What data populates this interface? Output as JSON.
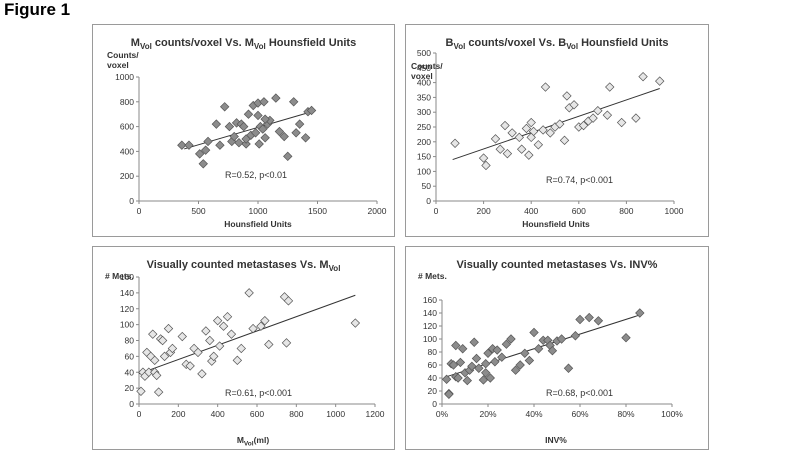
{
  "figure_title": "Figure 1",
  "chart_data": [
    {
      "type": "scatter",
      "id": "c1",
      "title": "M",
      "title_sub1": "Vol",
      "title_mid": " counts/voxel Vs. M",
      "title_sub2": "Vol",
      "title_end": "  Hounsfield Units",
      "ylabel_lines": [
        "Counts/",
        "voxel"
      ],
      "xlabel": "Hounsfield Units",
      "xlim": [
        0,
        2000
      ],
      "xticks": [
        0,
        500,
        1000,
        1500,
        2000
      ],
      "ylim": [
        0,
        1000
      ],
      "yticks": [
        0,
        200,
        400,
        600,
        800,
        1000
      ],
      "xtick_labels": [
        "0",
        "500",
        "1000",
        "1500",
        "2000"
      ],
      "ytick_labels": [
        "0",
        "200",
        "400",
        "600",
        "800",
        "1000"
      ],
      "annotation": "R=0.52, p<0.01",
      "marker_color": "#8c8c8c",
      "trend": {
        "x": [
          380,
          1450
        ],
        "y": [
          420,
          720
        ]
      },
      "points": {
        "x": [
          360,
          420,
          510,
          540,
          560,
          580,
          650,
          680,
          720,
          760,
          780,
          800,
          820,
          840,
          860,
          880,
          900,
          920,
          940,
          960,
          980,
          1000,
          1010,
          1020,
          1040,
          1050,
          1060,
          1080,
          1100,
          1150,
          1180,
          1220,
          1250,
          1300,
          1320,
          1350,
          1400,
          1420,
          1450,
          1000,
          1060,
          900
        ],
        "y": [
          450,
          450,
          380,
          300,
          410,
          480,
          620,
          450,
          760,
          600,
          480,
          520,
          630,
          470,
          620,
          600,
          460,
          700,
          530,
          770,
          550,
          790,
          460,
          600,
          580,
          800,
          510,
          620,
          650,
          830,
          560,
          520,
          360,
          800,
          550,
          620,
          510,
          720,
          730,
          690,
          660,
          500
        ]
      }
    },
    {
      "type": "scatter",
      "id": "c2",
      "title": "B",
      "title_sub1": "Vol",
      "title_mid": " counts/voxel Vs. B",
      "title_sub2": "Vol",
      "title_end": "  Hounsfield Units",
      "ylabel_lines": [
        "Counts/",
        "voxel"
      ],
      "xlabel": "Hounsfield Units",
      "xlim": [
        0,
        1000
      ],
      "xticks": [
        0,
        200,
        400,
        600,
        800,
        1000
      ],
      "ylim": [
        0,
        500
      ],
      "yticks": [
        0,
        50,
        100,
        150,
        200,
        250,
        300,
        350,
        400,
        450,
        500
      ],
      "xtick_labels": [
        "0",
        "200",
        "400",
        "600",
        "800",
        "1000"
      ],
      "ytick_labels": [
        "0",
        "50",
        "100",
        "150",
        "200",
        "250",
        "300",
        "350",
        "400",
        "450",
        "500"
      ],
      "annotation": "R=0.74, p<0.001",
      "marker_color": "#e6e6e6",
      "trend": {
        "x": [
          70,
          940
        ],
        "y": [
          140,
          380
        ]
      },
      "points": {
        "x": [
          80,
          200,
          210,
          250,
          270,
          290,
          300,
          320,
          350,
          360,
          380,
          390,
          400,
          410,
          430,
          450,
          460,
          480,
          500,
          520,
          540,
          550,
          560,
          580,
          600,
          620,
          640,
          660,
          680,
          720,
          730,
          780,
          840,
          870,
          940,
          400
        ],
        "y": [
          195,
          145,
          120,
          210,
          175,
          255,
          160,
          230,
          215,
          175,
          245,
          155,
          265,
          235,
          190,
          240,
          385,
          230,
          250,
          260,
          205,
          355,
          315,
          325,
          250,
          255,
          270,
          280,
          305,
          290,
          385,
          265,
          280,
          420,
          405,
          215
        ]
      }
    },
    {
      "type": "scatter",
      "id": "c3",
      "title": "Visually counted metastases Vs. M",
      "title_sub1": "Vol",
      "title_mid": "",
      "title_sub2": "",
      "title_end": "",
      "ylabel_lines": [
        "# Mets."
      ],
      "xlabel": "M",
      "xlabel_sub": "Vol",
      "xlabel_end": "(ml)",
      "xlim": [
        0,
        1200
      ],
      "xticks": [
        0,
        200,
        400,
        600,
        800,
        1000,
        1200
      ],
      "ylim": [
        0,
        160
      ],
      "yticks": [
        0,
        20,
        40,
        60,
        80,
        100,
        120,
        140,
        160
      ],
      "xtick_labels": [
        "0",
        "200",
        "400",
        "600",
        "800",
        "1000",
        "1200"
      ],
      "ytick_labels": [
        "0",
        "20",
        "40",
        "60",
        "80",
        "100",
        "120",
        "140",
        "160"
      ],
      "annotation": "R=0.61, p<0.001",
      "marker_color": "#e6e6e6",
      "trend": {
        "x": [
          0,
          1100
        ],
        "y": [
          38,
          137
        ]
      },
      "points": {
        "x": [
          10,
          20,
          30,
          40,
          50,
          60,
          70,
          80,
          90,
          100,
          110,
          120,
          130,
          150,
          160,
          170,
          220,
          240,
          260,
          280,
          300,
          320,
          340,
          360,
          370,
          380,
          400,
          410,
          430,
          450,
          470,
          500,
          520,
          560,
          580,
          620,
          640,
          660,
          740,
          750,
          760,
          1100,
          80
        ],
        "y": [
          16,
          40,
          35,
          65,
          40,
          60,
          88,
          40,
          36,
          15,
          82,
          80,
          60,
          95,
          65,
          70,
          85,
          50,
          48,
          70,
          65,
          38,
          92,
          80,
          54,
          60,
          105,
          73,
          98,
          110,
          88,
          55,
          70,
          140,
          95,
          98,
          105,
          75,
          135,
          77,
          130,
          102,
          55
        ]
      }
    },
    {
      "type": "scatter",
      "id": "c4",
      "title": "Visually counted metastases Vs. INV%",
      "title_sub1": "",
      "title_mid": "",
      "title_sub2": "",
      "title_end": "",
      "ylabel_lines": [
        "# Mets."
      ],
      "xlabel": "INV%",
      "xlim": [
        0,
        1
      ],
      "xticks": [
        0,
        0.2,
        0.4,
        0.6,
        0.8,
        1.0
      ],
      "ylim": [
        0,
        160
      ],
      "yticks": [
        0,
        20,
        40,
        60,
        80,
        100,
        120,
        140,
        160
      ],
      "xtick_labels": [
        "0%",
        "20%",
        "40%",
        "60%",
        "80%",
        "100%"
      ],
      "ytick_labels": [
        "0",
        "20",
        "40",
        "60",
        "80",
        "100",
        "120",
        "140",
        "160"
      ],
      "annotation": "R=0.68, p<0.001",
      "marker_color": "#8c8c8c",
      "trend": {
        "x": [
          0.02,
          0.86
        ],
        "y": [
          42,
          137
        ]
      },
      "points": {
        "x": [
          0.02,
          0.03,
          0.04,
          0.05,
          0.06,
          0.06,
          0.07,
          0.08,
          0.09,
          0.1,
          0.11,
          0.12,
          0.13,
          0.14,
          0.15,
          0.16,
          0.18,
          0.19,
          0.2,
          0.21,
          0.22,
          0.23,
          0.24,
          0.26,
          0.28,
          0.3,
          0.32,
          0.34,
          0.36,
          0.38,
          0.4,
          0.42,
          0.44,
          0.46,
          0.47,
          0.48,
          0.5,
          0.52,
          0.55,
          0.58,
          0.6,
          0.64,
          0.68,
          0.8,
          0.86,
          0.03,
          0.19
        ],
        "y": [
          38,
          16,
          62,
          60,
          42,
          90,
          40,
          64,
          85,
          48,
          36,
          52,
          58,
          95,
          70,
          55,
          37,
          62,
          78,
          40,
          85,
          65,
          83,
          72,
          92,
          100,
          52,
          60,
          78,
          67,
          110,
          85,
          98,
          98,
          90,
          82,
          97,
          100,
          55,
          105,
          130,
          133,
          128,
          102,
          140,
          15,
          48
        ]
      }
    }
  ]
}
